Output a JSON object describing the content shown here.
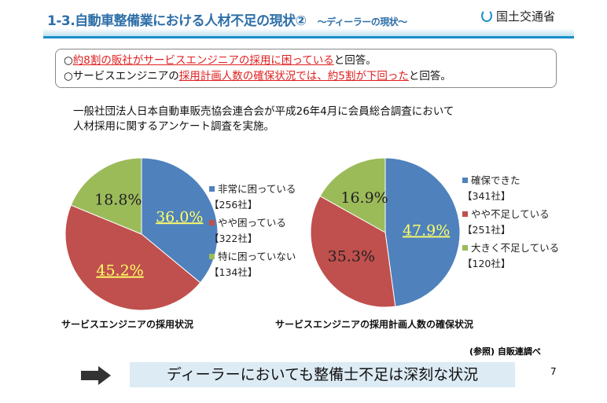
{
  "header": {
    "title": "1-3.自動車整備業における人材不足の現状②",
    "subtitle": "～ディーラーの現状～",
    "logo_text": "国土交通省"
  },
  "summary": {
    "line1": {
      "prefix": "○",
      "highlight": "約8割の販社がサービスエンジニアの採用に困っている",
      "suffix": "と回答。"
    },
    "line2": {
      "prefix": "○サービスエンジニアの",
      "highlight": "採用計画人数の確保状況では、約5割が下回った",
      "suffix": "と回答。"
    }
  },
  "intro": {
    "line1": "一般社団法人日本自動車販売協会連合会が平成26年4月に会員総合調査において",
    "line2": "人材採用に関するアンケート調査を実施。"
  },
  "chart_data": [
    {
      "type": "pie",
      "title": "サービスエンジニアの採用状況",
      "start": "top",
      "direction": "clockwise",
      "slices": [
        {
          "label": "非常に困っている",
          "count": "【256社】",
          "value": 36.0,
          "pct_label": "36.0%",
          "color": "#4f81bd"
        },
        {
          "label": "やや困っている",
          "count": "【322社】",
          "value": 45.2,
          "pct_label": "45.2%",
          "color": "#c0504d"
        },
        {
          "label": "特に困っていない",
          "count": "【134社】",
          "value": 18.8,
          "pct_label": "18.8%",
          "color": "#9bbb59"
        }
      ]
    },
    {
      "type": "pie",
      "title": "サービスエンジニアの採用計画人数の確保状況",
      "start": "top",
      "direction": "clockwise",
      "slices": [
        {
          "label": "確保できた",
          "count": "【341社】",
          "value": 47.9,
          "pct_label": "47.9%",
          "color": "#4f81bd"
        },
        {
          "label": "やや不足している",
          "count": "【251社】",
          "value": 35.3,
          "pct_label": "35.3%",
          "color": "#c0504d"
        },
        {
          "label": "大きく不足している",
          "count": "【120社】",
          "value": 16.9,
          "pct_label": "16.9%",
          "color": "#9bbb59"
        }
      ]
    }
  ],
  "source": "(参照) 自販連調べ",
  "conclusion": "ディーラーにおいても整備士不足は深刻な状況",
  "page_number": "7"
}
